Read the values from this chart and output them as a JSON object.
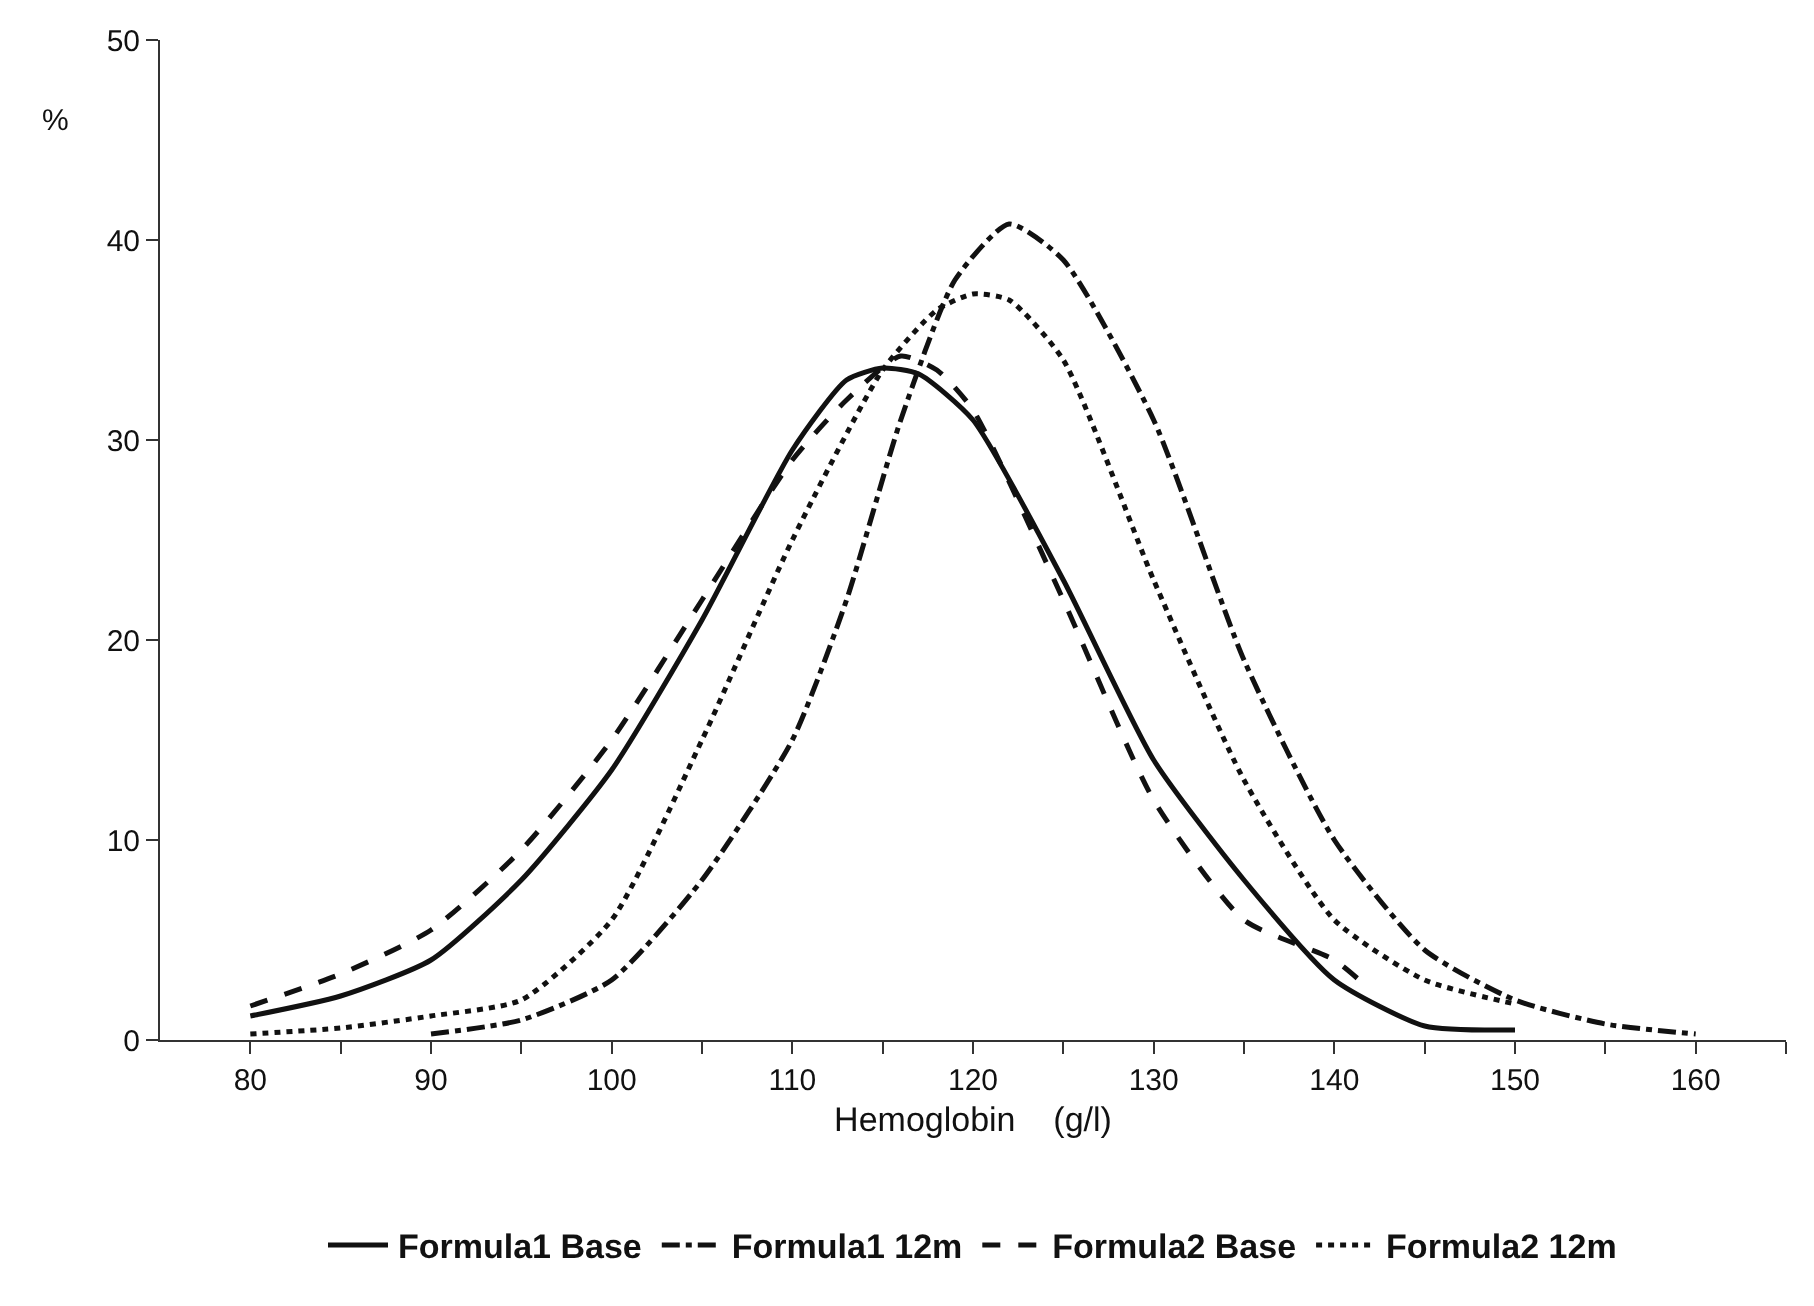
{
  "chart_data": {
    "type": "line",
    "xlabel": "Hemoglobin    (g/l)",
    "ylabel": "%",
    "xlim": [
      75,
      165
    ],
    "xticks": [
      80,
      {
        "value": 85,
        "label": null
      },
      90,
      {
        "value": 95,
        "label": null
      },
      100,
      {
        "value": 105,
        "label": null
      },
      110,
      {
        "value": 115,
        "label": null
      },
      120,
      {
        "value": 125,
        "label": null
      },
      130,
      {
        "value": 135,
        "label": null
      },
      140,
      {
        "value": 145,
        "label": null
      },
      150,
      {
        "value": 155,
        "label": null
      },
      160,
      {
        "value": 165,
        "label": null
      }
    ],
    "ylim": [
      0,
      50
    ],
    "yticks": [
      0,
      10,
      20,
      30,
      40,
      50
    ],
    "legend": "bottom",
    "marker": "none",
    "series": [
      {
        "name": "Formula1 Base",
        "color": "#111111",
        "line_style": "solid",
        "x": [
          80,
          85,
          90,
          95,
          100,
          105,
          110,
          113,
          115,
          117,
          120,
          125,
          130,
          135,
          140,
          145,
          150
        ],
        "values": [
          1.2,
          2.2,
          4,
          8,
          13.5,
          21,
          29.5,
          33,
          33.6,
          33.3,
          31,
          23,
          14,
          8,
          3,
          0.7,
          0.5
        ]
      },
      {
        "name": "Formula1 12m",
        "color": "#111111",
        "line_style": "dashdot",
        "x": [
          90,
          95,
          100,
          105,
          110,
          113,
          116,
          119,
          122,
          125,
          130,
          135,
          140,
          145,
          150,
          155,
          160
        ],
        "values": [
          0.3,
          1,
          3,
          8,
          15,
          22,
          31,
          38,
          40.8,
          39,
          31,
          19,
          10,
          4.5,
          2,
          0.8,
          0.3
        ]
      },
      {
        "name": "Formula2 Base",
        "color": "#111111",
        "line_style": "dashed",
        "x": [
          80,
          85,
          90,
          95,
          100,
          105,
          110,
          113,
          116,
          118,
          120,
          125,
          130,
          135,
          140,
          142
        ],
        "values": [
          1.7,
          3.3,
          5.5,
          9.5,
          15,
          22,
          29,
          32,
          34.2,
          33.5,
          31.5,
          22,
          12,
          6,
          4,
          2.5
        ]
      },
      {
        "name": "Formula2 12m",
        "color": "#111111",
        "line_style": "dotted",
        "x": [
          80,
          85,
          90,
          95,
          100,
          105,
          110,
          115,
          118,
          120,
          122,
          125,
          130,
          135,
          140,
          145,
          150
        ],
        "values": [
          0.3,
          0.6,
          1.2,
          2,
          6,
          15,
          25,
          33.5,
          36.5,
          37.3,
          37,
          34,
          23,
          13,
          6,
          3,
          1.8
        ]
      }
    ]
  }
}
